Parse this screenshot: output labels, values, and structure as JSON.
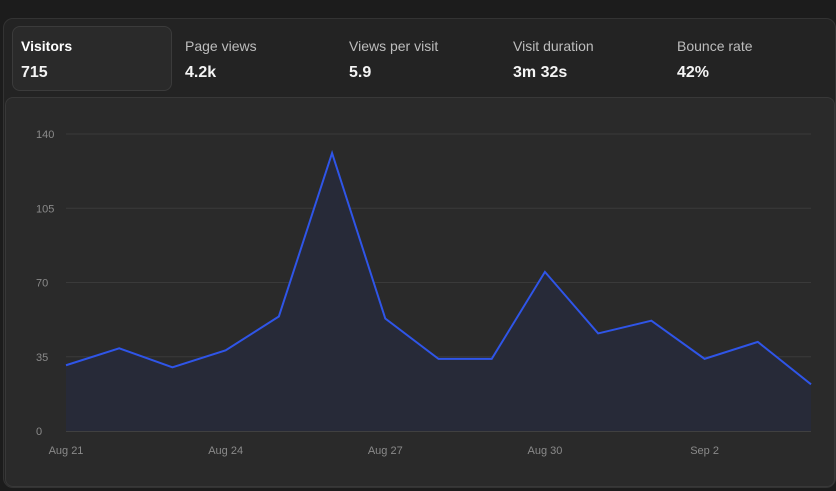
{
  "metrics": [
    {
      "label": "Visitors",
      "value": "715",
      "active": true
    },
    {
      "label": "Page views",
      "value": "4.2k",
      "active": false
    },
    {
      "label": "Views per visit",
      "value": "5.9",
      "active": false
    },
    {
      "label": "Visit duration",
      "value": "3m 32s",
      "active": false
    },
    {
      "label": "Bounce rate",
      "value": "42%",
      "active": false
    }
  ],
  "colors": {
    "line": "#2f55e8",
    "area": "#272a38",
    "grid": "#3a3a3a",
    "axis": "#555555"
  },
  "chart_data": {
    "type": "area",
    "title": "",
    "xlabel": "",
    "ylabel": "",
    "x": [
      "Aug 21",
      "Aug 22",
      "Aug 23",
      "Aug 24",
      "Aug 25",
      "Aug 26",
      "Aug 27",
      "Aug 28",
      "Aug 29",
      "Aug 30",
      "Aug 31",
      "Sep 1",
      "Sep 2",
      "Sep 3",
      "Sep 4"
    ],
    "x_tick_labels": [
      "Aug 21",
      "Aug 24",
      "Aug 27",
      "Aug 30",
      "Sep 2"
    ],
    "y_ticks": [
      0,
      35,
      70,
      105,
      140
    ],
    "ylim": [
      0,
      140
    ],
    "grid": true,
    "legend": "none",
    "series": [
      {
        "values": [
          31,
          39,
          30,
          38,
          54,
          131,
          53,
          34,
          34,
          75,
          46,
          52,
          34,
          42,
          22
        ]
      }
    ]
  }
}
